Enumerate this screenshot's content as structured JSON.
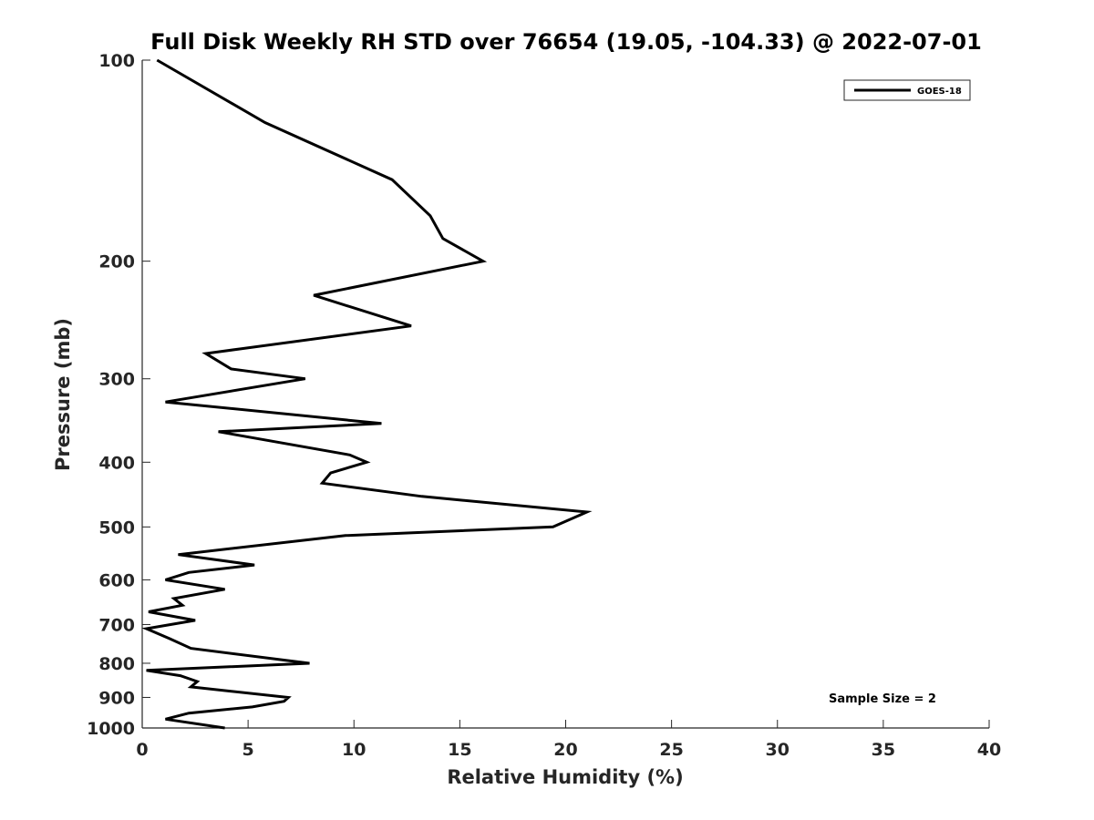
{
  "chart_data": {
    "type": "line",
    "title": "Full Disk Weekly RH STD over 76654 (19.05, -104.33) @ 2022-07-01",
    "xlabel": "Relative Humidity (%)",
    "ylabel": "Pressure (mb)",
    "xlim": [
      0,
      40
    ],
    "ylim": [
      100,
      1000
    ],
    "y_scale": "log",
    "y_reversed": true,
    "grid": false,
    "legend_position": "top-right",
    "x_ticks": [
      "0",
      "5",
      "10",
      "15",
      "20",
      "25",
      "30",
      "35",
      "40"
    ],
    "y_ticks": [
      "100",
      "200",
      "300",
      "400",
      "500",
      "600",
      "700",
      "800",
      "900",
      "1000"
    ],
    "annotation": "Sample Size = 2",
    "series": [
      {
        "name": "GOES-18",
        "color": "#000000",
        "points": [
          [
            0.7,
            100
          ],
          [
            5.8,
            124
          ],
          [
            11.8,
            151
          ],
          [
            13.6,
            171
          ],
          [
            14.2,
            185
          ],
          [
            16.1,
            200
          ],
          [
            8.1,
            225
          ],
          [
            12.7,
            250
          ],
          [
            3.0,
            275
          ],
          [
            4.2,
            290
          ],
          [
            7.7,
            300
          ],
          [
            1.1,
            325
          ],
          [
            11.3,
            350
          ],
          [
            3.6,
            360
          ],
          [
            9.8,
            390
          ],
          [
            10.6,
            400
          ],
          [
            8.9,
            415
          ],
          [
            8.5,
            430
          ],
          [
            13.2,
            450
          ],
          [
            21.0,
            475
          ],
          [
            19.4,
            500
          ],
          [
            9.6,
            515
          ],
          [
            1.7,
            550
          ],
          [
            5.3,
            570
          ],
          [
            2.2,
            585
          ],
          [
            1.1,
            600
          ],
          [
            3.9,
            620
          ],
          [
            1.5,
            640
          ],
          [
            1.9,
            655
          ],
          [
            0.3,
            670
          ],
          [
            2.5,
            690
          ],
          [
            0.2,
            710
          ],
          [
            1.3,
            735
          ],
          [
            2.3,
            760
          ],
          [
            7.9,
            800
          ],
          [
            0.2,
            820
          ],
          [
            1.8,
            835
          ],
          [
            2.6,
            852
          ],
          [
            2.3,
            868
          ],
          [
            6.9,
            900
          ],
          [
            6.7,
            912
          ],
          [
            5.2,
            930
          ],
          [
            2.2,
            950
          ],
          [
            1.1,
            970
          ],
          [
            3.9,
            1000
          ]
        ]
      }
    ]
  }
}
